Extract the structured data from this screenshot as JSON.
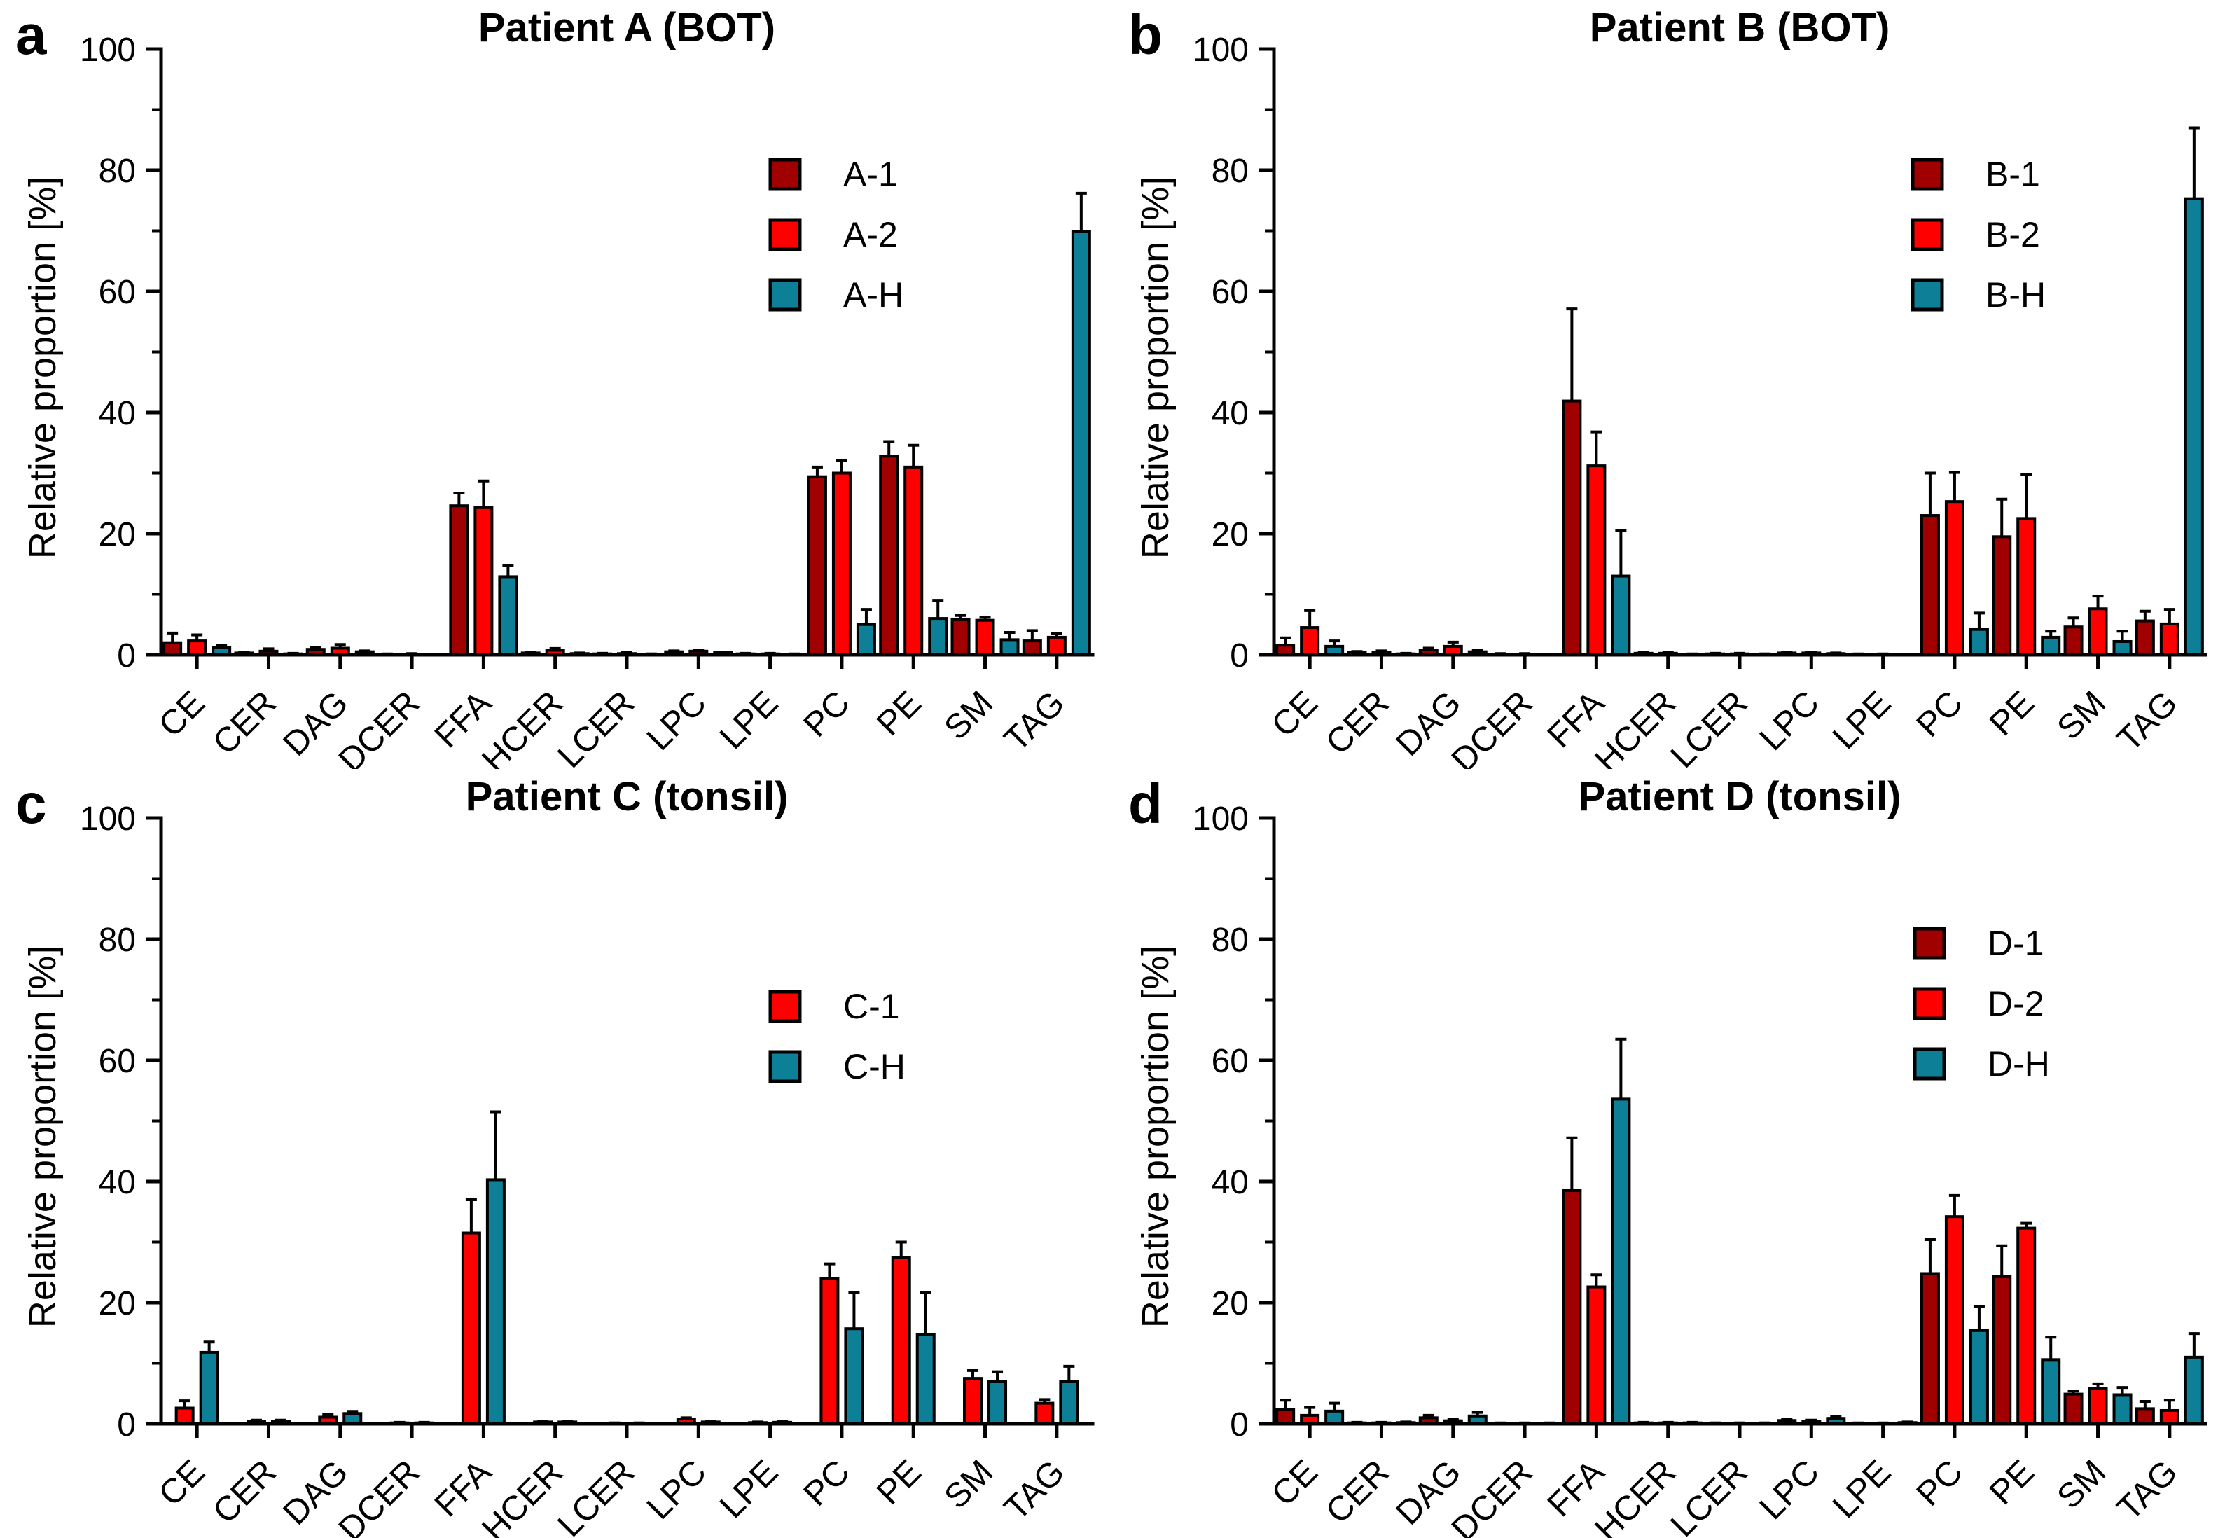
{
  "figure": {
    "kind": "four-panel grouped bar figure with error bars",
    "background": "#ffffff"
  },
  "colors": {
    "dark_red": "#A00000",
    "red": "#FF0000",
    "teal": "#0D7F96",
    "axis": "#000000"
  },
  "chart_data": [
    {
      "type": "bar",
      "panel_letter": "a",
      "title": "Patient A (BOT)",
      "ylabel": "Relative proportion [%]",
      "ylim": [
        0,
        100
      ],
      "yticks": [
        0,
        20,
        40,
        60,
        80,
        100
      ],
      "grid": false,
      "legend_position": "upper right",
      "categories": [
        "CE",
        "CER",
        "DAG",
        "DCER",
        "FFA",
        "HCER",
        "LCER",
        "LPC",
        "LPE",
        "PC",
        "PE",
        "SM",
        "TAG"
      ],
      "series": [
        {
          "name": "A-1",
          "color": "#A00000",
          "values": [
            2.0,
            0.3,
            0.9,
            0.05,
            24.6,
            0.3,
            0.15,
            0.5,
            0.15,
            29.4,
            32.8,
            5.9,
            2.3
          ],
          "errors": [
            1.6,
            0.15,
            0.35,
            0.1,
            2.1,
            0.15,
            0.1,
            0.15,
            0.1,
            1.6,
            2.4,
            0.6,
            1.7
          ]
        },
        {
          "name": "A-2",
          "color": "#FF0000",
          "values": [
            2.3,
            0.6,
            1.1,
            0.1,
            24.3,
            0.75,
            0.2,
            0.6,
            0.15,
            30.0,
            31.0,
            5.7,
            2.9
          ],
          "errors": [
            1.0,
            0.4,
            0.6,
            0.1,
            4.4,
            0.3,
            0.15,
            0.2,
            0.1,
            2.1,
            3.6,
            0.5,
            0.6
          ]
        },
        {
          "name": "A-H",
          "color": "#0D7F96",
          "values": [
            1.2,
            0.15,
            0.5,
            0.05,
            12.9,
            0.2,
            0.1,
            0.35,
            0.1,
            5.0,
            6.0,
            2.5,
            69.9
          ],
          "errors": [
            0.4,
            0.1,
            0.15,
            0.05,
            1.9,
            0.1,
            0.05,
            0.1,
            0.05,
            2.5,
            3.0,
            1.2,
            6.3
          ]
        }
      ]
    },
    {
      "type": "bar",
      "panel_letter": "b",
      "title": "Patient B (BOT)",
      "ylabel": "Relative proportion [%]",
      "ylim": [
        0,
        100
      ],
      "yticks": [
        0,
        20,
        40,
        60,
        80,
        100
      ],
      "grid": false,
      "legend_position": "upper right",
      "categories": [
        "CE",
        "CER",
        "DAG",
        "DCER",
        "FFA",
        "HCER",
        "LCER",
        "LPC",
        "LPE",
        "PC",
        "PE",
        "SM",
        "TAG"
      ],
      "series": [
        {
          "name": "B-1",
          "color": "#A00000",
          "values": [
            1.6,
            0.35,
            0.8,
            0.1,
            41.9,
            0.25,
            0.15,
            0.3,
            0.1,
            23.0,
            19.5,
            4.6,
            5.6
          ],
          "errors": [
            1.2,
            0.2,
            0.3,
            0.1,
            15.2,
            0.15,
            0.1,
            0.15,
            0.05,
            7.0,
            6.2,
            1.5,
            1.6
          ]
        },
        {
          "name": "B-2",
          "color": "#FF0000",
          "values": [
            4.5,
            0.4,
            1.4,
            0.1,
            31.2,
            0.25,
            0.15,
            0.3,
            0.1,
            25.3,
            22.5,
            7.6,
            5.1
          ],
          "errors": [
            2.8,
            0.25,
            0.7,
            0.1,
            5.6,
            0.15,
            0.1,
            0.15,
            0.05,
            4.8,
            7.3,
            2.1,
            2.4
          ]
        },
        {
          "name": "B-H",
          "color": "#0D7F96",
          "values": [
            1.4,
            0.15,
            0.5,
            0.05,
            13.0,
            0.1,
            0.1,
            0.2,
            0.05,
            4.2,
            2.9,
            2.2,
            75.3
          ],
          "errors": [
            0.9,
            0.1,
            0.2,
            0.05,
            7.5,
            0.05,
            0.05,
            0.1,
            0.05,
            2.7,
            1.0,
            1.7,
            11.7
          ]
        }
      ]
    },
    {
      "type": "bar",
      "panel_letter": "c",
      "title": "Patient C (tonsil)",
      "ylabel": "Relative proportion [%]",
      "ylim": [
        0,
        100
      ],
      "yticks": [
        0,
        20,
        40,
        60,
        80,
        100
      ],
      "grid": false,
      "legend_position": "upper right",
      "categories": [
        "CE",
        "CER",
        "DAG",
        "DCER",
        "FFA",
        "HCER",
        "LCER",
        "LPC",
        "LPE",
        "PC",
        "PE",
        "SM",
        "TAG"
      ],
      "series": [
        {
          "name": "C-1",
          "color": "#FF0000",
          "values": [
            2.6,
            0.4,
            1.1,
            0.15,
            31.5,
            0.3,
            0.1,
            0.8,
            0.2,
            24.0,
            27.5,
            7.5,
            3.4
          ],
          "errors": [
            1.2,
            0.2,
            0.4,
            0.1,
            5.5,
            0.15,
            0.05,
            0.2,
            0.1,
            2.4,
            2.5,
            1.3,
            0.6
          ]
        },
        {
          "name": "C-H",
          "color": "#0D7F96",
          "values": [
            11.8,
            0.4,
            1.7,
            0.15,
            40.3,
            0.3,
            0.1,
            0.3,
            0.25,
            15.7,
            14.7,
            7.0,
            7.0
          ],
          "errors": [
            1.7,
            0.2,
            0.35,
            0.1,
            11.2,
            0.15,
            0.05,
            0.15,
            0.1,
            6.0,
            7.0,
            1.6,
            2.5
          ]
        }
      ]
    },
    {
      "type": "bar",
      "panel_letter": "d",
      "title": "Patient D (tonsil)",
      "ylabel": "Relative proportion [%]",
      "ylim": [
        0,
        100
      ],
      "yticks": [
        0,
        20,
        40,
        60,
        80,
        100
      ],
      "grid": false,
      "legend_position": "upper right",
      "categories": [
        "CE",
        "CER",
        "DAG",
        "DCER",
        "FFA",
        "HCER",
        "LCER",
        "LPC",
        "LPE",
        "PC",
        "PE",
        "SM",
        "TAG"
      ],
      "series": [
        {
          "name": "D-1",
          "color": "#A00000",
          "values": [
            2.4,
            0.15,
            1.0,
            0.1,
            38.5,
            0.15,
            0.1,
            0.55,
            0.1,
            24.8,
            24.3,
            4.9,
            2.5
          ],
          "errors": [
            1.5,
            0.1,
            0.4,
            0.05,
            8.7,
            0.1,
            0.05,
            0.2,
            0.05,
            5.6,
            5.1,
            0.5,
            1.2
          ]
        },
        {
          "name": "D-2",
          "color": "#FF0000",
          "values": [
            1.4,
            0.15,
            0.5,
            0.1,
            22.6,
            0.15,
            0.1,
            0.45,
            0.1,
            34.2,
            32.3,
            5.8,
            2.2
          ],
          "errors": [
            1.3,
            0.1,
            0.2,
            0.05,
            2.0,
            0.1,
            0.05,
            0.15,
            0.05,
            3.5,
            0.8,
            0.8,
            1.7
          ]
        },
        {
          "name": "D-H",
          "color": "#0D7F96",
          "values": [
            2.1,
            0.2,
            1.3,
            0.1,
            53.6,
            0.15,
            0.1,
            0.9,
            0.2,
            15.4,
            10.6,
            4.8,
            11.0
          ],
          "errors": [
            1.3,
            0.1,
            0.6,
            0.05,
            9.9,
            0.1,
            0.05,
            0.3,
            0.1,
            4.0,
            3.7,
            1.2,
            3.9
          ]
        }
      ]
    }
  ]
}
